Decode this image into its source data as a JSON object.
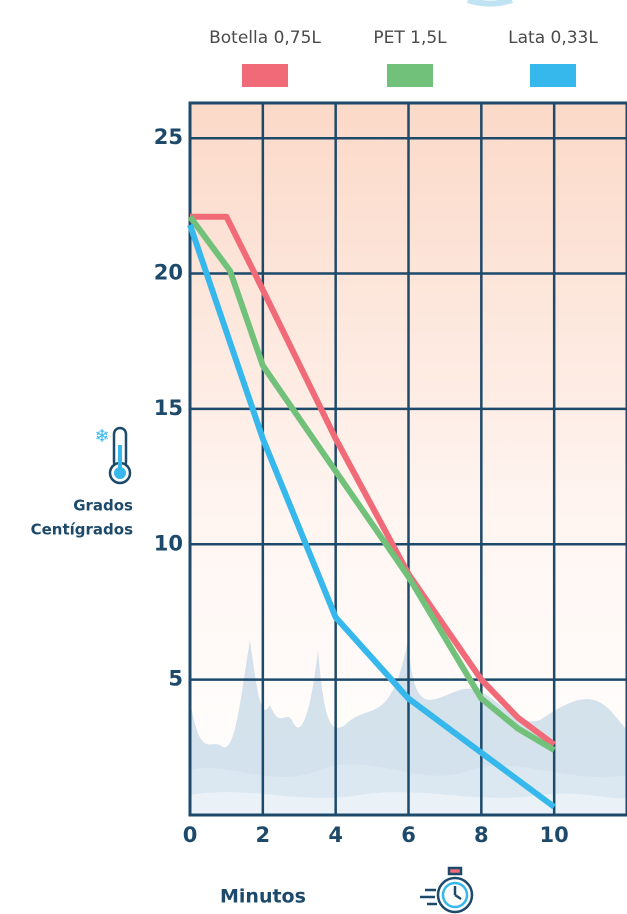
{
  "chart_data": {
    "type": "line",
    "x_label": "Minutos",
    "y_label": [
      "Grados",
      "Centígrados"
    ],
    "xlim": [
      0,
      12
    ],
    "ylim": [
      0,
      26.3
    ],
    "xticks": [
      0,
      2,
      4,
      6,
      8,
      10
    ],
    "yticks": [
      5,
      10,
      15,
      20,
      25
    ],
    "grid": true,
    "series": [
      {
        "name": "Botella 0,75L",
        "color": "#f06a78",
        "x": [
          0,
          1,
          2,
          4,
          6,
          8,
          9,
          10
        ],
        "values": [
          22.1,
          22.1,
          19.4,
          13.9,
          8.9,
          5.0,
          3.6,
          2.6
        ]
      },
      {
        "name": "PET 1,5L",
        "color": "#72c17a",
        "x": [
          0,
          1.1,
          2,
          4,
          6,
          8,
          9,
          10
        ],
        "values": [
          22.1,
          20.1,
          16.6,
          12.7,
          8.8,
          4.3,
          3.2,
          2.4
        ]
      },
      {
        "name": "Lata 0,33L",
        "color": "#36b8ec",
        "x": [
          0,
          2,
          4,
          6,
          8,
          10
        ],
        "values": [
          21.8,
          13.9,
          7.3,
          4.3,
          2.3,
          0.3
        ]
      }
    ]
  }
}
